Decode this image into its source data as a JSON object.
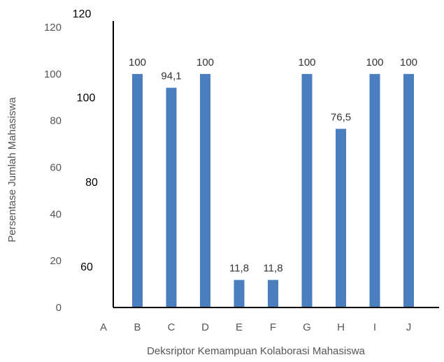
{
  "chart_data": {
    "type": "bar",
    "categories": [
      "A",
      "B",
      "C",
      "D",
      "E",
      "F",
      "G",
      "H",
      "I",
      "J"
    ],
    "values": [
      null,
      100,
      94.1,
      100,
      11.8,
      11.8,
      100,
      76.5,
      100,
      100
    ],
    "data_labels": [
      "",
      "100",
      "94,1",
      "100",
      "11,8",
      "11,8",
      "100",
      "76,5",
      "100",
      "100"
    ],
    "xlabel": "Deksriptor  Kemampuan Kolaborasi Mahasiswa",
    "ylabel": "Persentase Jumlah Mahasiswa",
    "ylim": [
      0,
      120
    ],
    "yticks": [
      "0",
      "20",
      "40",
      "60",
      "80",
      "100",
      "120"
    ],
    "ghost_labels": [
      "120",
      "100",
      "80",
      "60"
    ],
    "bar_color": "#4a7ebf",
    "grid": false,
    "legend": "none"
  }
}
